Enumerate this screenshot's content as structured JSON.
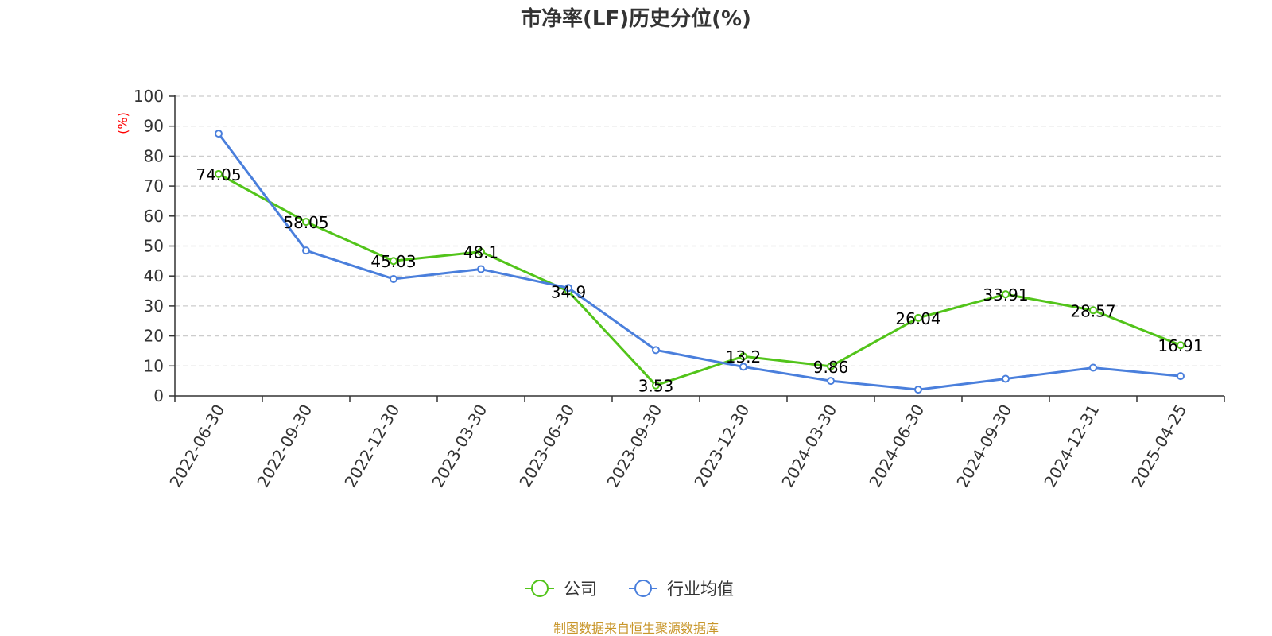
{
  "chart_data": {
    "type": "line",
    "title": "市净率(LF)历史分位(%)",
    "ylabel": "(%)",
    "xlabel": "",
    "ylim": [
      0,
      100
    ],
    "yticks": [
      0,
      10,
      20,
      30,
      40,
      50,
      60,
      70,
      80,
      90,
      100
    ],
    "grid": true,
    "legend_position": "bottom",
    "categories": [
      "2022-06-30",
      "2022-09-30",
      "2022-12-30",
      "2023-03-30",
      "2023-06-30",
      "2023-09-30",
      "2023-12-30",
      "2024-03-30",
      "2024-06-30",
      "2024-09-30",
      "2024-12-31",
      "2025-04-25"
    ],
    "series": [
      {
        "name": "公司",
        "color": "#52c41a",
        "values": [
          74.05,
          58.05,
          45.03,
          48.1,
          34.9,
          3.53,
          13.2,
          9.86,
          26.04,
          33.91,
          28.57,
          16.91
        ],
        "show_labels": true
      },
      {
        "name": "行业均值",
        "color": "#4a7fdc",
        "values": [
          87.5,
          48.5,
          39.0,
          42.3,
          36.0,
          15.3,
          9.7,
          5.0,
          2.1,
          5.7,
          9.4,
          6.6
        ],
        "show_labels": false
      }
    ]
  },
  "source_text": "制图数据来自恒生聚源数据库",
  "colors": {
    "title": "#333333",
    "axis": "#333333",
    "grid": "#cccccc",
    "unit": "#ff0000",
    "source": "#c8962a"
  }
}
